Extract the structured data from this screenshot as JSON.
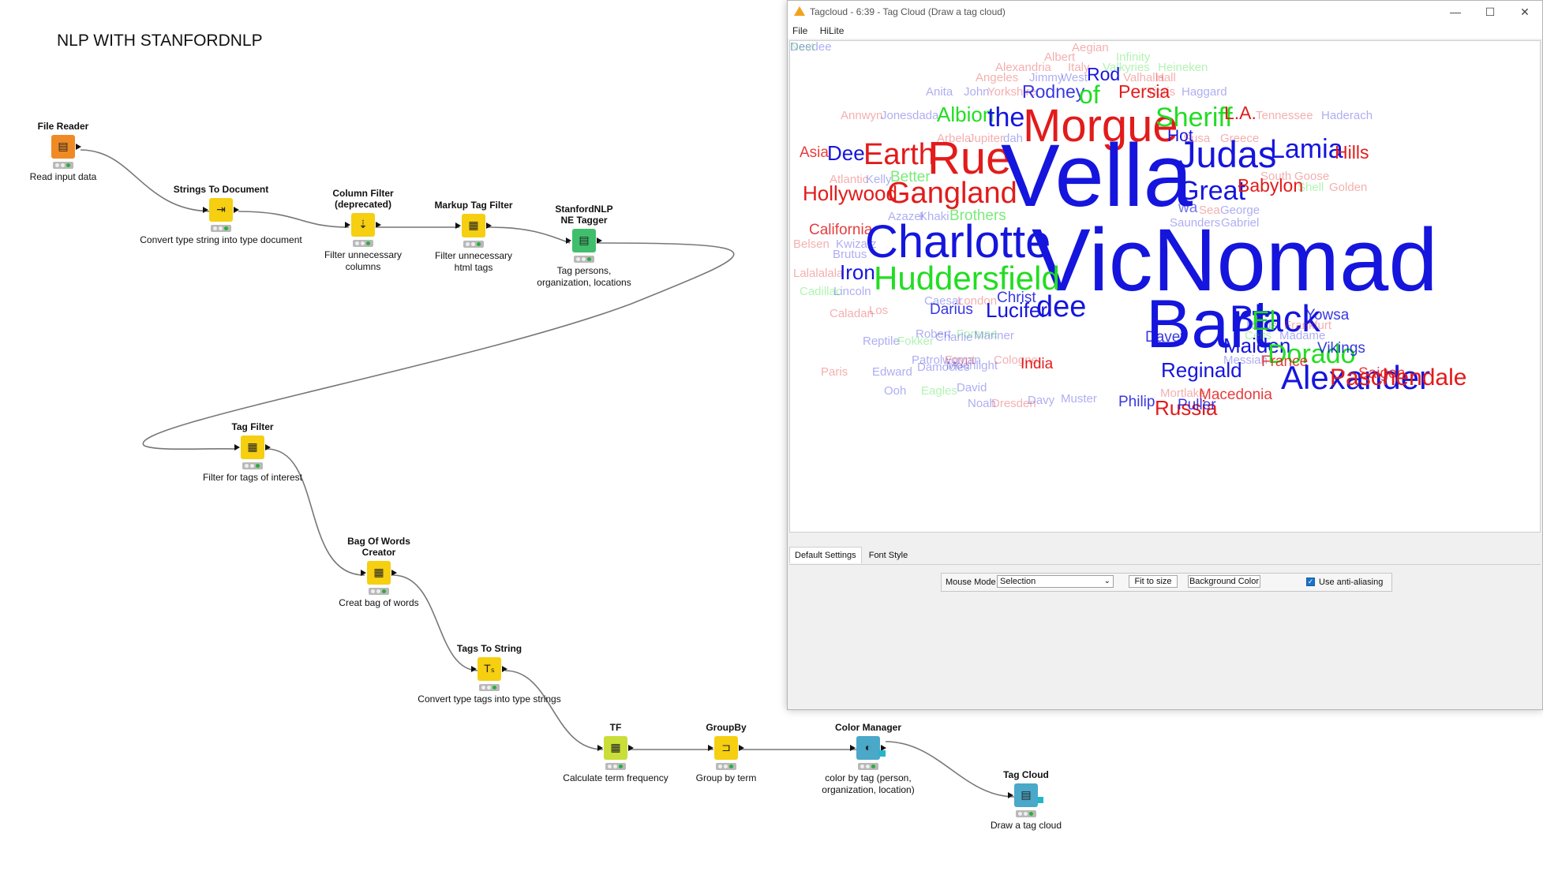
{
  "workflow": {
    "title": "NLP WITH STANFORDNLP",
    "nodes": [
      {
        "id": "file-reader",
        "name": "File Reader",
        "desc": "Read input data",
        "icon": "file-reader-icon",
        "color": "#f08a24"
      },
      {
        "id": "strings-to-document",
        "name": "Strings To Document",
        "desc": "Convert  type string into type document",
        "icon": "document-icon",
        "color": "#f5cf10"
      },
      {
        "id": "column-filter",
        "name": "Column Filter (deprecated)",
        "desc": "Filter unnecessary columns",
        "icon": "filter-icon",
        "color": "#f5cf10"
      },
      {
        "id": "markup-tag-filter",
        "name": "Markup Tag Filter",
        "desc": "Filter unnecessary html tags",
        "icon": "tag-filter-icon",
        "color": "#f5cf10"
      },
      {
        "id": "stanfordnlp-ne-tagger",
        "name": "StanfordNLP NE Tagger",
        "desc": "Tag persons, organization, locations",
        "icon": "tagger-icon",
        "color": "#3fbf6b"
      },
      {
        "id": "tag-filter",
        "name": "Tag Filter",
        "desc": "Filter for tags of interest",
        "icon": "tag-filter-icon",
        "color": "#f5cf10"
      },
      {
        "id": "bag-of-words",
        "name": "Bag Of Words Creator",
        "desc": "Creat bag of words",
        "icon": "bag-of-words-icon",
        "color": "#f5cf10"
      },
      {
        "id": "tags-to-string",
        "name": "Tags To String",
        "desc": "Convert type tags into type strings",
        "icon": "tags-to-string-icon",
        "color": "#f5cf10"
      },
      {
        "id": "tf",
        "name": "TF",
        "desc": "Calculate term frequency",
        "icon": "term-frequency-icon",
        "color": "#c9de37"
      },
      {
        "id": "groupby",
        "name": "GroupBy",
        "desc": "Group by term",
        "icon": "groupby-icon",
        "color": "#f5cf10"
      },
      {
        "id": "color-manager",
        "name": "Color Manager",
        "desc": "color by tag (person, organization, location)",
        "icon": "color-drop-icon",
        "color": "#4aa8c8"
      },
      {
        "id": "tag-cloud",
        "name": "Tag Cloud",
        "desc": "Draw a tag cloud",
        "icon": "tag-cloud-icon",
        "color": "#4aa8c8"
      }
    ]
  },
  "window": {
    "title": "Tagcloud - 6:39 - Tag Cloud (Draw a tag cloud)",
    "minimize": "—",
    "maximize": "☐",
    "close": "✕",
    "menu": [
      "File",
      "HiLite"
    ]
  },
  "colors": {
    "person": "#1515dd",
    "location": "#e21b1b",
    "organization": "#22dd22"
  },
  "cloud_words": [
    {
      "t": "Aegian",
      "c": "location",
      "s": 15,
      "o": 0.35
    },
    {
      "t": "Albert",
      "c": "location",
      "s": 15,
      "o": 0.35
    },
    {
      "t": "Infinity",
      "c": "organization",
      "s": 15,
      "o": 0.35
    },
    {
      "t": "Alexandria",
      "c": "location",
      "s": 15,
      "o": 0.35
    },
    {
      "t": "Italy",
      "c": "location",
      "s": 15,
      "o": 0.35
    },
    {
      "t": "Valkyries",
      "c": "organization",
      "s": 15,
      "o": 0.35
    },
    {
      "t": "Heineken",
      "c": "organization",
      "s": 15,
      "o": 0.35
    },
    {
      "t": "Angeles",
      "c": "location",
      "s": 15,
      "o": 0.35
    },
    {
      "t": "Jimmy",
      "c": "person",
      "s": 15,
      "o": 0.35
    },
    {
      "t": "West",
      "c": "person",
      "s": 15,
      "o": 0.35
    },
    {
      "t": "Rod",
      "c": "person",
      "s": 23,
      "o": 1
    },
    {
      "t": "Valhalla",
      "c": "location",
      "s": 15,
      "o": 0.35
    },
    {
      "t": "Hall",
      "c": "location",
      "s": 15,
      "o": 0.35
    },
    {
      "t": "Anita",
      "c": "person",
      "s": 15,
      "o": 0.35
    },
    {
      "t": "John",
      "c": "person",
      "s": 15,
      "o": 0.35
    },
    {
      "t": "Yorkshire",
      "c": "location",
      "s": 15,
      "o": 0.35
    },
    {
      "t": "Rodney",
      "c": "person",
      "s": 23,
      "o": 0.85
    },
    {
      "t": "of",
      "c": "organization",
      "s": 32,
      "o": 1
    },
    {
      "t": "Persia",
      "c": "location",
      "s": 23,
      "o": 1
    },
    {
      "t": "Tigris",
      "c": "location",
      "s": 15,
      "o": 0.35
    },
    {
      "t": "Haggard",
      "c": "person",
      "s": 15,
      "o": 0.35
    },
    {
      "t": "Annwyn",
      "c": "location",
      "s": 15,
      "o": 0.35
    },
    {
      "t": "Jones",
      "c": "person",
      "s": 15,
      "o": 0.35
    },
    {
      "t": "dada",
      "c": "person",
      "s": 15,
      "o": 0.35
    },
    {
      "t": "Albion",
      "c": "organization",
      "s": 26,
      "o": 1
    },
    {
      "t": "the",
      "c": "person",
      "s": 34,
      "o": 1
    },
    {
      "t": "Morgue",
      "c": "location",
      "s": 58,
      "o": 1
    },
    {
      "t": "Sheriff",
      "c": "organization",
      "s": 34,
      "o": 1
    },
    {
      "t": "L.A.",
      "c": "location",
      "s": 23,
      "o": 1
    },
    {
      "t": "Tennessee",
      "c": "location",
      "s": 15,
      "o": 0.35
    },
    {
      "t": "Haderach",
      "c": "person",
      "s": 15,
      "o": 0.35
    },
    {
      "t": "Arbela",
      "c": "location",
      "s": 15,
      "o": 0.35
    },
    {
      "t": "Jupiter",
      "c": "location",
      "s": 15,
      "o": 0.35
    },
    {
      "t": "dah",
      "c": "person",
      "s": 15,
      "o": 0.35
    },
    {
      "t": "Hot",
      "c": "person",
      "s": 21,
      "o": 1
    },
    {
      "t": "Susa",
      "c": "location",
      "s": 15,
      "o": 0.35
    },
    {
      "t": "Greece",
      "c": "location",
      "s": 15,
      "o": 0.35
    },
    {
      "t": "Asia",
      "c": "location",
      "s": 19,
      "o": 0.85
    },
    {
      "t": "Dee",
      "c": "person",
      "s": 26,
      "o": 1
    },
    {
      "t": "Earth",
      "c": "location",
      "s": 38,
      "o": 1
    },
    {
      "t": "Rue",
      "c": "location",
      "s": 58,
      "o": 1
    },
    {
      "t": "Vella",
      "c": "person",
      "s": 112,
      "o": 1
    },
    {
      "t": "Judas",
      "c": "person",
      "s": 47,
      "o": 1
    },
    {
      "t": "Lamia",
      "c": "person",
      "s": 34,
      "o": 1
    },
    {
      "t": "Hills",
      "c": "location",
      "s": 23,
      "o": 1
    },
    {
      "t": "Atlantic",
      "c": "location",
      "s": 15,
      "o": 0.35
    },
    {
      "t": "Kelly",
      "c": "person",
      "s": 15,
      "o": 0.35
    },
    {
      "t": "Better",
      "c": "organization",
      "s": 19,
      "o": 0.6
    },
    {
      "t": "South",
      "c": "location",
      "s": 15,
      "o": 0.35
    },
    {
      "t": "Goose",
      "c": "location",
      "s": 15,
      "o": 0.35
    },
    {
      "t": "Hollywood",
      "c": "location",
      "s": 26,
      "o": 1
    },
    {
      "t": "Gangland",
      "c": "location",
      "s": 38,
      "o": 1
    },
    {
      "t": "Great",
      "c": "person",
      "s": 34,
      "o": 1
    },
    {
      "t": "Babylon",
      "c": "location",
      "s": 23,
      "o": 1
    },
    {
      "t": "Shell",
      "c": "organization",
      "s": 15,
      "o": 0.35
    },
    {
      "t": "Golden",
      "c": "location",
      "s": 15,
      "o": 0.35
    },
    {
      "t": "Azazel",
      "c": "person",
      "s": 15,
      "o": 0.35
    },
    {
      "t": "Khaki",
      "c": "person",
      "s": 15,
      "o": 0.35
    },
    {
      "t": "Brothers",
      "c": "organization",
      "s": 19,
      "o": 0.6
    },
    {
      "t": "wa",
      "c": "person",
      "s": 19,
      "o": 0.6
    },
    {
      "t": "Sea",
      "c": "location",
      "s": 15,
      "o": 0.35
    },
    {
      "t": "George",
      "c": "person",
      "s": 15,
      "o": 0.35
    },
    {
      "t": "Saunders",
      "c": "person",
      "s": 15,
      "o": 0.35
    },
    {
      "t": "Gabriel",
      "c": "person",
      "s": 15,
      "o": 0.35
    },
    {
      "t": "California",
      "c": "location",
      "s": 19,
      "o": 0.85
    },
    {
      "t": "Belsen",
      "c": "location",
      "s": 15,
      "o": 0.35
    },
    {
      "t": "Kwizatz",
      "c": "person",
      "s": 15,
      "o": 0.35
    },
    {
      "t": "Brutus",
      "c": "person",
      "s": 15,
      "o": 0.35
    },
    {
      "t": "Charlotte",
      "c": "person",
      "s": 58,
      "o": 1
    },
    {
      "t": "VicNomad",
      "c": "person",
      "s": 112,
      "o": 1
    },
    {
      "t": "Lalalalala",
      "c": "location",
      "s": 15,
      "o": 0.35
    },
    {
      "t": "Iron",
      "c": "person",
      "s": 26,
      "o": 1
    },
    {
      "t": "Huddersfield",
      "c": "organization",
      "s": 42,
      "o": 1
    },
    {
      "t": "Cadillac",
      "c": "organization",
      "s": 15,
      "o": 0.35
    },
    {
      "t": "Lincoln",
      "c": "person",
      "s": 15,
      "o": 0.35
    },
    {
      "t": "Caesar",
      "c": "person",
      "s": 15,
      "o": 0.35
    },
    {
      "t": "London",
      "c": "location",
      "s": 15,
      "o": 0.35
    },
    {
      "t": "Christ",
      "c": "person",
      "s": 19,
      "o": 0.85
    },
    {
      "t": "Caladan",
      "c": "location",
      "s": 15,
      "o": 0.35
    },
    {
      "t": "Los",
      "c": "location",
      "s": 15,
      "o": 0.35
    },
    {
      "t": "Darius",
      "c": "person",
      "s": 19,
      "o": 0.85
    },
    {
      "t": "Lucifer",
      "c": "person",
      "s": 26,
      "o": 1
    },
    {
      "t": "dee",
      "c": "person",
      "s": 38,
      "o": 1
    },
    {
      "t": "Bart",
      "c": "person",
      "s": 86,
      "o": 1
    },
    {
      "t": "Black",
      "c": "person",
      "s": 47,
      "o": 1
    },
    {
      "t": "El",
      "c": "organization",
      "s": 34,
      "o": 1
    },
    {
      "t": "Yowsa",
      "c": "person",
      "s": 19,
      "o": 0.85
    },
    {
      "t": "Rufus",
      "c": "person",
      "s": 15,
      "o": 0.35
    },
    {
      "t": "Frankfurt",
      "c": "location",
      "s": 15,
      "o": 0.35
    },
    {
      "t": "Robert",
      "c": "person",
      "s": 15,
      "o": 0.35
    },
    {
      "t": "Fortune",
      "c": "organization",
      "s": 15,
      "o": 0.35
    },
    {
      "t": "Celts",
      "c": "organization",
      "s": 15,
      "o": 0.35
    },
    {
      "t": "Madame",
      "c": "person",
      "s": 15,
      "o": 0.35
    },
    {
      "t": "Reptile",
      "c": "person",
      "s": 15,
      "o": 0.35
    },
    {
      "t": "Fokker",
      "c": "organization",
      "s": 15,
      "o": 0.35
    },
    {
      "t": "Charlie",
      "c": "person",
      "s": 15,
      "o": 0.35
    },
    {
      "t": "Mariner",
      "c": "person",
      "s": 15,
      "o": 0.35
    },
    {
      "t": "Davey",
      "c": "person",
      "s": 19,
      "o": 0.85
    },
    {
      "t": "Maiden",
      "c": "person",
      "s": 26,
      "o": 1
    },
    {
      "t": "Dorado",
      "c": "organization",
      "s": 34,
      "o": 1
    },
    {
      "t": "Vikings",
      "c": "person",
      "s": 19,
      "o": 0.85
    },
    {
      "t": "Patrolwoman",
      "c": "person",
      "s": 15,
      "o": 0.35
    },
    {
      "t": "Egypt",
      "c": "location",
      "s": 15,
      "o": 0.35
    },
    {
      "t": "Cologne",
      "c": "location",
      "s": 15,
      "o": 0.35
    },
    {
      "t": "Messiah",
      "c": "person",
      "s": 15,
      "o": 0.35
    },
    {
      "t": "France",
      "c": "location",
      "s": 19,
      "o": 0.85
    },
    {
      "t": "Paris",
      "c": "location",
      "s": 15,
      "o": 0.35
    },
    {
      "t": "Edward",
      "c": "person",
      "s": 15,
      "o": 0.35
    },
    {
      "t": "Damocles",
      "c": "person",
      "s": 15,
      "o": 0.35
    },
    {
      "t": "Moonlight",
      "c": "person",
      "s": 15,
      "o": 0.35
    },
    {
      "t": "India",
      "c": "location",
      "s": 19,
      "o": 1
    },
    {
      "t": "Reginald",
      "c": "person",
      "s": 26,
      "o": 1
    },
    {
      "t": "Alexander",
      "c": "person",
      "s": 42,
      "o": 1
    },
    {
      "t": "Paschendale",
      "c": "location",
      "s": 30,
      "o": 1
    },
    {
      "t": "Saigon",
      "c": "location",
      "s": 19,
      "o": 0.85
    },
    {
      "t": "Ooh",
      "c": "person",
      "s": 15,
      "o": 0.35
    },
    {
      "t": "Eagles",
      "c": "organization",
      "s": 15,
      "o": 0.35
    },
    {
      "t": "David",
      "c": "person",
      "s": 15,
      "o": 0.35
    },
    {
      "t": "Mortlake",
      "c": "location",
      "s": 15,
      "o": 0.35
    },
    {
      "t": "Macedonia",
      "c": "location",
      "s": 19,
      "o": 0.85
    },
    {
      "t": "Noah",
      "c": "person",
      "s": 15,
      "o": 0.35
    },
    {
      "t": "Dresden",
      "c": "location",
      "s": 15,
      "o": 0.35
    },
    {
      "t": "Davy",
      "c": "person",
      "s": 15,
      "o": 0.35
    },
    {
      "t": "Muster",
      "c": "person",
      "s": 15,
      "o": 0.35
    },
    {
      "t": "Philip",
      "c": "person",
      "s": 19,
      "o": 0.85
    },
    {
      "t": "Russia",
      "c": "location",
      "s": 26,
      "o": 1
    },
    {
      "t": "Puller",
      "c": "person",
      "s": 19,
      "o": 0.85
    },
    {
      "t": "Nest",
      "c": "organization",
      "s": 15,
      "o": 0.35
    },
    {
      "t": "Deedee",
      "c": "person",
      "s": 15,
      "o": 0.35
    }
  ],
  "settings": {
    "tabs": [
      "Default Settings",
      "Font Style"
    ],
    "mouse_mode_label": "Mouse Mode",
    "mouse_mode_value": "Selection",
    "fit_label": "Fit to size",
    "bg_label": "Background Color",
    "aa_label": "Use anti-aliasing"
  }
}
